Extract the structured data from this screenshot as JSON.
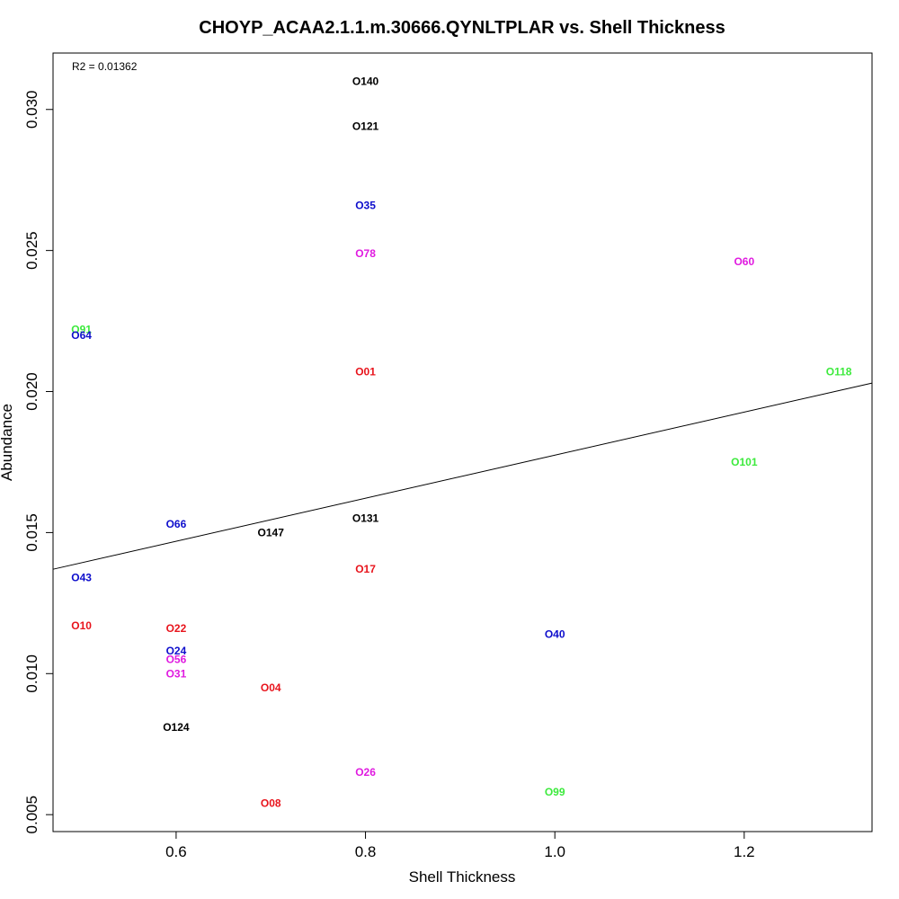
{
  "chart_data": {
    "type": "scatter",
    "title": "CHOYP_ACAA2.1.1.m.30666.QYNLTPLAR vs. Shell Thickness",
    "xlabel": "Shell Thickness",
    "ylabel": "Abundance",
    "xlim": [
      0.47,
      1.335
    ],
    "ylim": [
      0.0044,
      0.032
    ],
    "xticks": [
      0.6,
      0.8,
      1.0,
      1.2
    ],
    "xtick_labels": [
      "0.6",
      "0.8",
      "1.0",
      "1.2"
    ],
    "yticks": [
      0.005,
      0.01,
      0.015,
      0.02,
      0.025,
      0.03
    ],
    "ytick_labels": [
      "0.005",
      "0.010",
      "0.015",
      "0.020",
      "0.025",
      "0.030"
    ],
    "annotation": "R2 = 0.01362",
    "regression_line": {
      "x": [
        0.47,
        1.335
      ],
      "y": [
        0.0137,
        0.0203
      ]
    },
    "colors": {
      "red": "#e8141c",
      "blue": "#0e0ecc",
      "magenta": "#e01ae0",
      "green": "#3dea3d",
      "black": "#000000"
    },
    "points": [
      {
        "label": "O140",
        "x": 0.8,
        "y": 0.031,
        "color": "black"
      },
      {
        "label": "O121",
        "x": 0.8,
        "y": 0.0294,
        "color": "black"
      },
      {
        "label": "O35",
        "x": 0.8,
        "y": 0.0266,
        "color": "blue"
      },
      {
        "label": "O78",
        "x": 0.8,
        "y": 0.0249,
        "color": "magenta"
      },
      {
        "label": "O60",
        "x": 1.2,
        "y": 0.0246,
        "color": "magenta"
      },
      {
        "label": "O91",
        "x": 0.5,
        "y": 0.0222,
        "color": "green"
      },
      {
        "label": "O64",
        "x": 0.5,
        "y": 0.022,
        "color": "blue"
      },
      {
        "label": "O01",
        "x": 0.8,
        "y": 0.0207,
        "color": "red"
      },
      {
        "label": "O118",
        "x": 1.3,
        "y": 0.0207,
        "color": "green"
      },
      {
        "label": "O101",
        "x": 1.2,
        "y": 0.0175,
        "color": "green"
      },
      {
        "label": "O131",
        "x": 0.8,
        "y": 0.0155,
        "color": "black"
      },
      {
        "label": "O66",
        "x": 0.6,
        "y": 0.0153,
        "color": "blue"
      },
      {
        "label": "O147",
        "x": 0.7,
        "y": 0.015,
        "color": "black"
      },
      {
        "label": "O17",
        "x": 0.8,
        "y": 0.0137,
        "color": "red"
      },
      {
        "label": "O43",
        "x": 0.5,
        "y": 0.0134,
        "color": "blue"
      },
      {
        "label": "O10",
        "x": 0.5,
        "y": 0.0117,
        "color": "red"
      },
      {
        "label": "O22",
        "x": 0.6,
        "y": 0.0116,
        "color": "red"
      },
      {
        "label": "O40",
        "x": 1.0,
        "y": 0.0114,
        "color": "blue"
      },
      {
        "label": "O24",
        "x": 0.6,
        "y": 0.0108,
        "color": "blue"
      },
      {
        "label": "O56",
        "x": 0.6,
        "y": 0.0105,
        "color": "magenta"
      },
      {
        "label": "O31",
        "x": 0.6,
        "y": 0.01,
        "color": "magenta"
      },
      {
        "label": "O04",
        "x": 0.7,
        "y": 0.0095,
        "color": "red"
      },
      {
        "label": "O124",
        "x": 0.6,
        "y": 0.0081,
        "color": "black"
      },
      {
        "label": "O26",
        "x": 0.8,
        "y": 0.0065,
        "color": "magenta"
      },
      {
        "label": "O99",
        "x": 1.0,
        "y": 0.0058,
        "color": "green"
      },
      {
        "label": "O08",
        "x": 0.7,
        "y": 0.0054,
        "color": "red"
      }
    ]
  }
}
